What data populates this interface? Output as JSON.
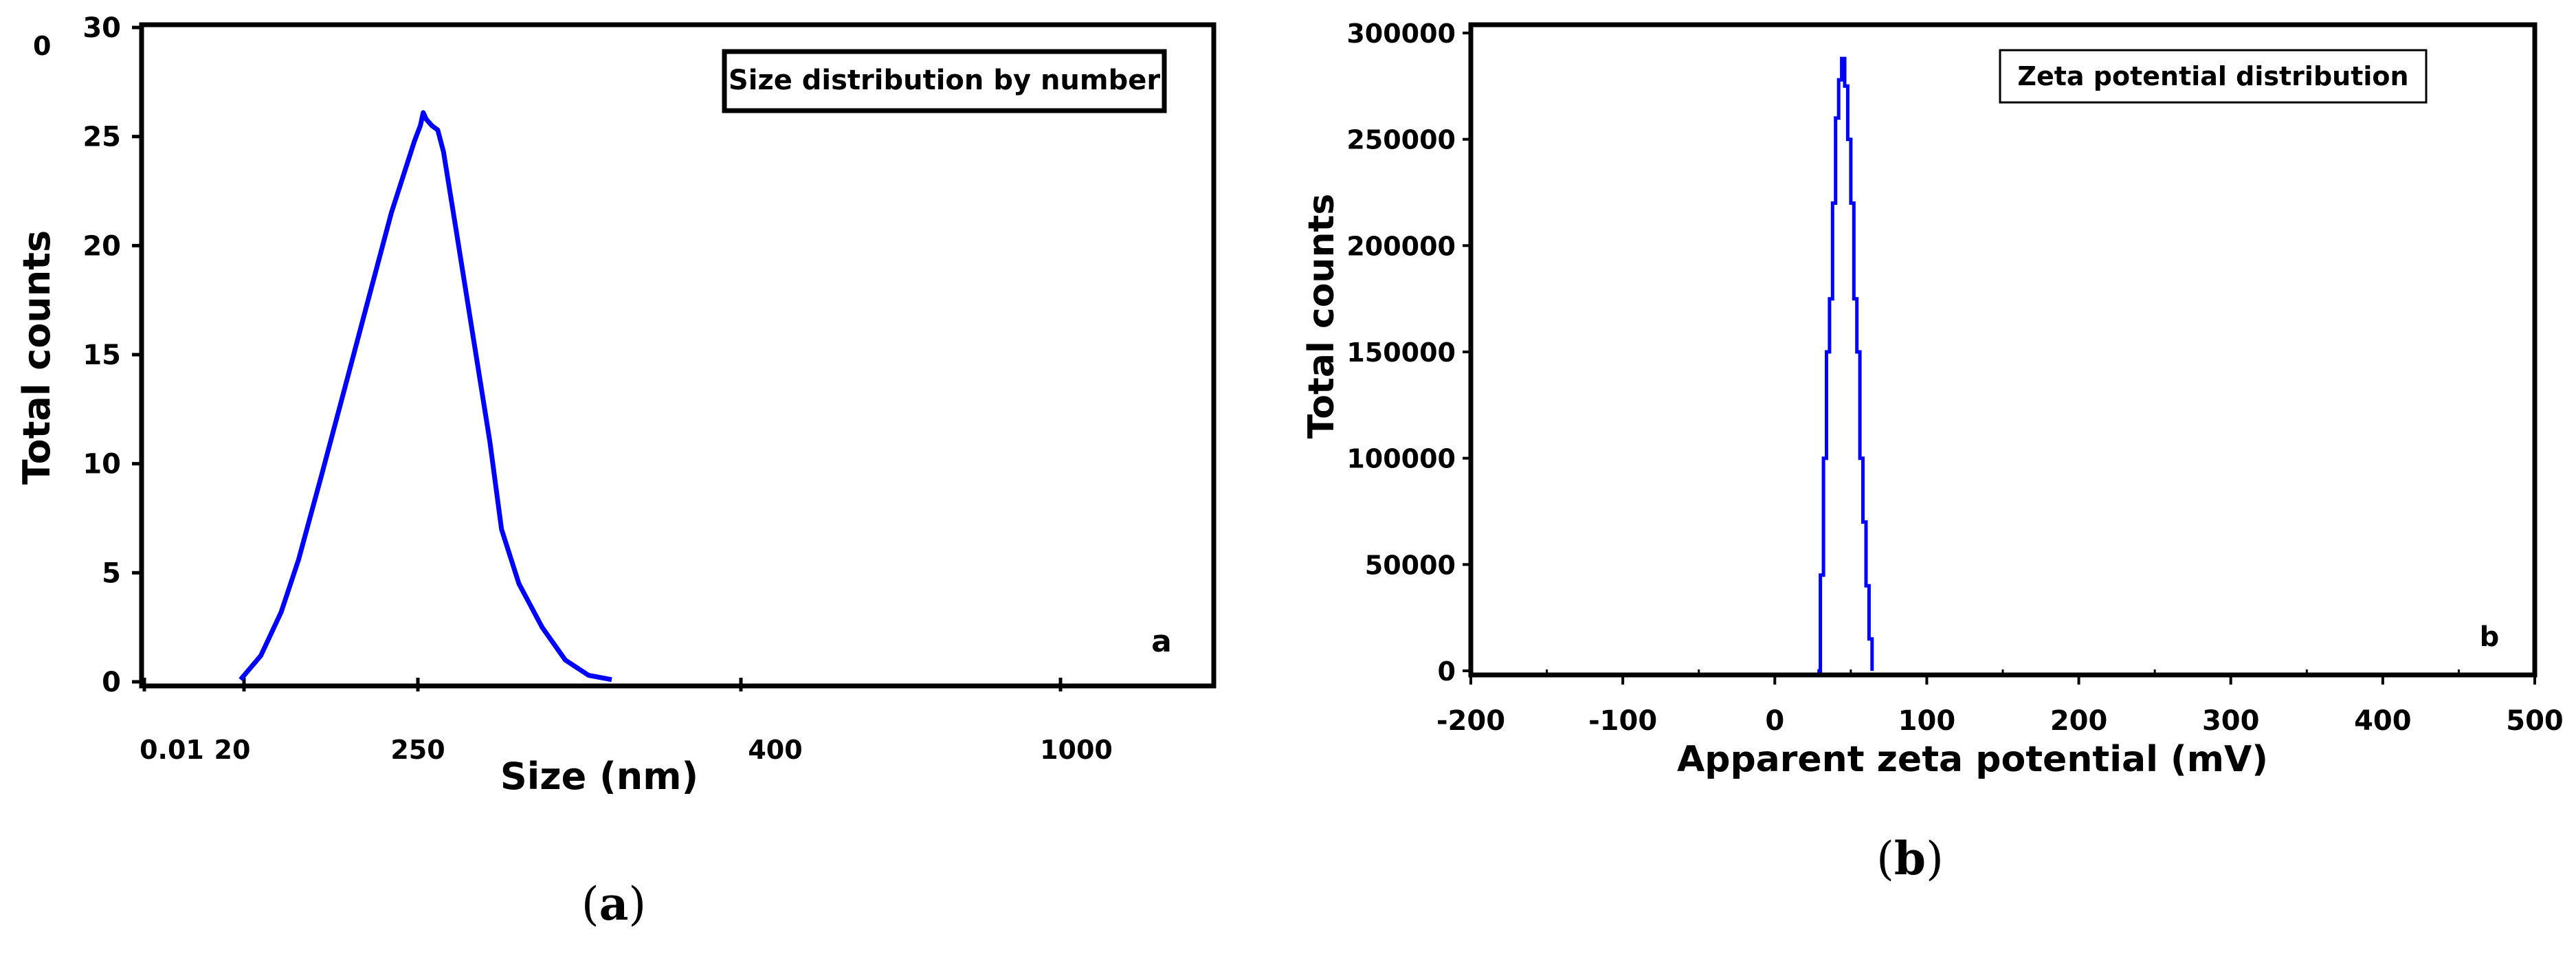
{
  "chart_data": [
    {
      "panel": "a",
      "type": "line",
      "title": "Size distribution by number",
      "xlabel": "Size (nm)",
      "ylabel": "Total counts",
      "x_tick_labels": [
        "0.01",
        "20",
        "250",
        "400",
        "1000"
      ],
      "y_ticks": [
        0,
        5,
        10,
        15,
        20,
        25,
        30
      ],
      "y_top_stray_label": "0",
      "ylim": [
        0,
        30
      ],
      "panel_letter": "a",
      "caption_letter": "a",
      "series_color": "#0000ff",
      "series": [
        {
          "name": "",
          "points": [
            [
              0.0,
              0.1
            ],
            [
              0.035,
              1.2
            ],
            [
              0.07,
              3.2
            ],
            [
              0.1,
              5.6
            ],
            [
              0.14,
              9.5
            ],
            [
              0.18,
              13.5
            ],
            [
              0.22,
              17.5
            ],
            [
              0.26,
              21.5
            ],
            [
              0.3,
              24.8
            ],
            [
              0.31,
              25.5
            ],
            [
              0.315,
              26.1
            ],
            [
              0.32,
              25.8
            ],
            [
              0.33,
              25.5
            ],
            [
              0.34,
              25.3
            ],
            [
              0.35,
              24.3
            ],
            [
              0.37,
              21.0
            ],
            [
              0.4,
              16.0
            ],
            [
              0.43,
              11.0
            ],
            [
              0.45,
              7.0
            ],
            [
              0.48,
              4.5
            ],
            [
              0.52,
              2.5
            ],
            [
              0.56,
              1.0
            ],
            [
              0.6,
              0.3
            ],
            [
              0.64,
              0.1
            ]
          ],
          "x_points_scale_note_values_in_axis_fraction_between_20_and_extent": "1"
        }
      ]
    },
    {
      "panel": "b",
      "type": "line",
      "title": "Zeta potential distribution",
      "xlabel": "Apparent zeta potential (mV)",
      "ylabel": "Total counts",
      "x_ticks": [
        -200,
        -100,
        0,
        100,
        200,
        300,
        400,
        500
      ],
      "y_ticks": [
        0,
        50000,
        100000,
        150000,
        200000,
        250000,
        300000
      ],
      "xlim": [
        -200,
        500
      ],
      "ylim": [
        0,
        300000
      ],
      "panel_letter": "b",
      "caption_letter": "b",
      "series_color": "#0000ff",
      "series": [
        {
          "name": "",
          "x": [
            28,
            30,
            32,
            34,
            36,
            38,
            40,
            42,
            44,
            46,
            48,
            50,
            52,
            54,
            56,
            58,
            60,
            62,
            64
          ],
          "y": [
            0,
            45000,
            100000,
            150000,
            175000,
            220000,
            260000,
            278000,
            288000,
            275000,
            250000,
            220000,
            175000,
            150000,
            100000,
            70000,
            40000,
            15000,
            0
          ]
        }
      ]
    }
  ]
}
